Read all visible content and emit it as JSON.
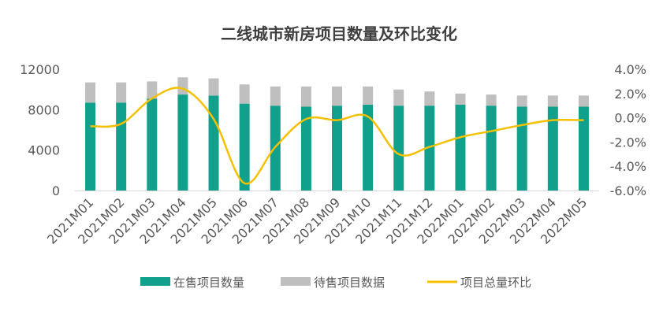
{
  "chart_data": {
    "type": "bar",
    "title": "二线城市新房项目数量及环比变化",
    "categories": [
      "2021M01",
      "2021M02",
      "2021M03",
      "2021M04",
      "2021M05",
      "2021M06",
      "2021M07",
      "2021M08",
      "2021M09",
      "2021M10",
      "2021M11",
      "2021M12",
      "2022M01",
      "2022M02",
      "2022M03",
      "2022M04",
      "2022M05"
    ],
    "stacked": true,
    "series": [
      {
        "name": "在售项目数量",
        "type": "bar",
        "axis": "left",
        "color": "#11a08c",
        "values": [
          8700,
          8700,
          9100,
          9500,
          9400,
          8600,
          8400,
          8300,
          8400,
          8500,
          8400,
          8400,
          8500,
          8400,
          8300,
          8300,
          8300
        ]
      },
      {
        "name": "待售项目数据",
        "type": "bar",
        "axis": "left",
        "color": "#bfbfbf",
        "values": [
          2000,
          2000,
          1700,
          1700,
          1700,
          1900,
          1900,
          2000,
          1900,
          1800,
          1600,
          1400,
          1100,
          1100,
          1100,
          1100,
          1100
        ]
      },
      {
        "name": "项目总量环比",
        "type": "line",
        "axis": "right",
        "color": "#f5c000",
        "unit": "%",
        "values": [
          -0.7,
          -0.5,
          1.6,
          2.4,
          -0.1,
          -5.4,
          -2.4,
          -0.1,
          -0.2,
          0.1,
          -3.0,
          -2.4,
          -1.6,
          -1.1,
          -0.6,
          -0.2,
          -0.2
        ]
      }
    ],
    "y_left": {
      "ylim": [
        0,
        12000
      ],
      "ticks": [
        "0",
        "4000",
        "8000",
        "12000"
      ],
      "tick_values": [
        0,
        4000,
        8000,
        12000
      ]
    },
    "y_right": {
      "ylim": [
        -6.0,
        4.0
      ],
      "ticks": [
        "-6.0%",
        "-4.0%",
        "-2.0%",
        "0.0%",
        "2.0%",
        "4.0%"
      ],
      "tick_values": [
        -6,
        -4,
        -2,
        0,
        2,
        4
      ]
    },
    "grid": false,
    "legend_position": "bottom"
  }
}
